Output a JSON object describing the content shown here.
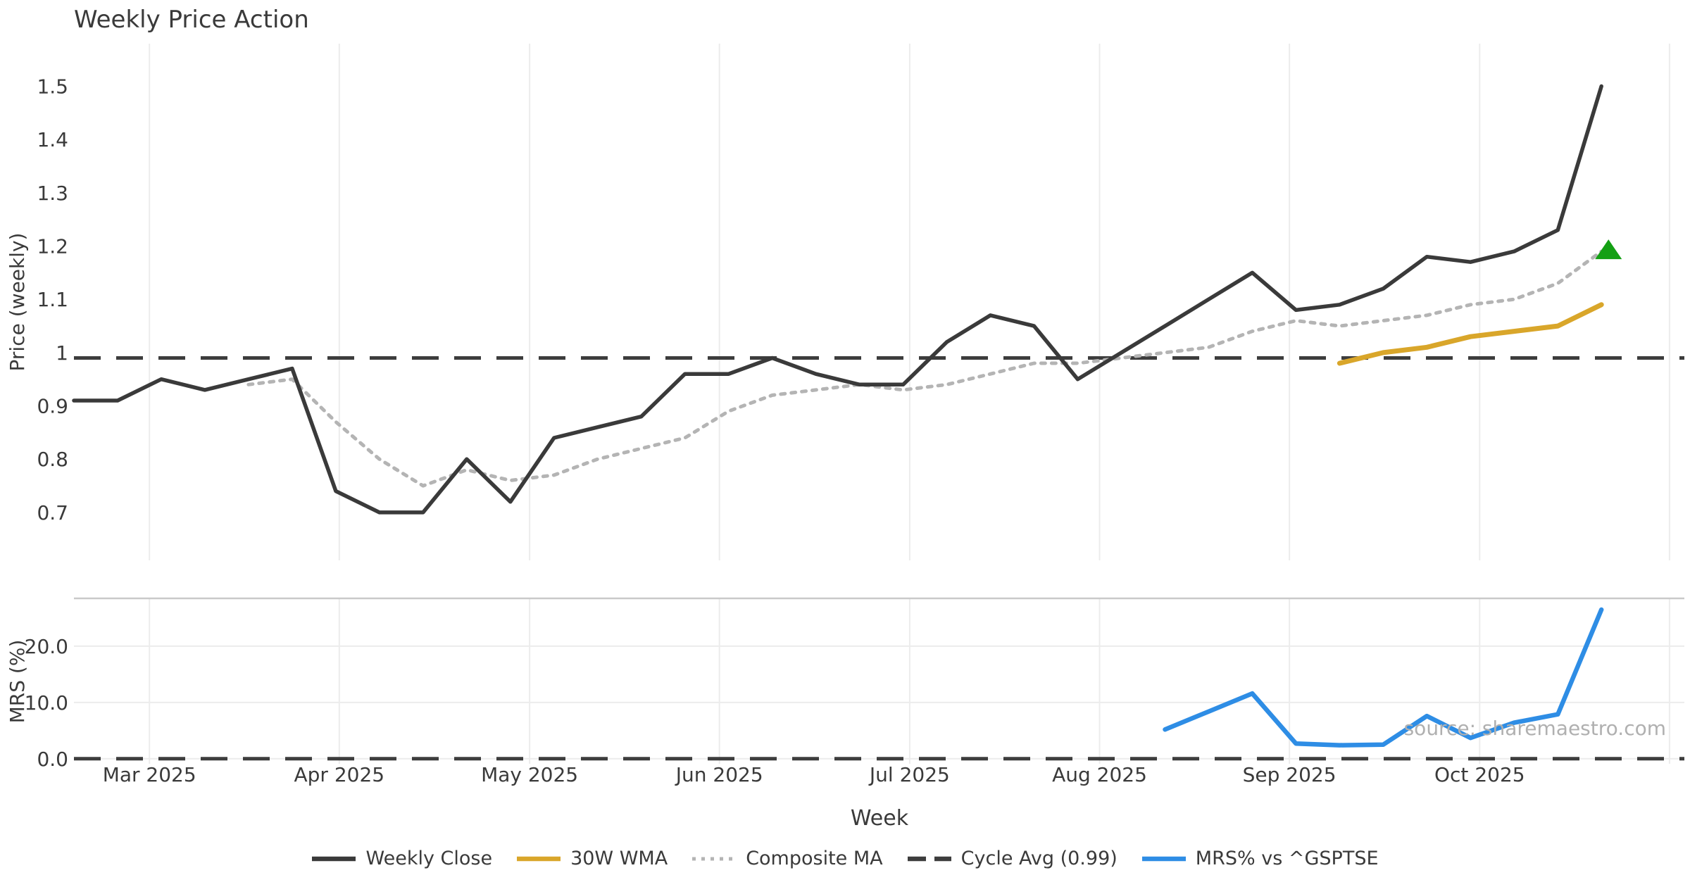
{
  "title": "Weekly Price Action",
  "source_note": "source: sharemaestro.com",
  "colors": {
    "weekly_close": "#3a3a3a",
    "wma_30w": "#d9a62a",
    "composite_ma": "#b4b4b4",
    "cycle_avg": "#3d3d3d",
    "mrs": "#2e8de5",
    "signal_marker": "#14a014",
    "gridline": "#ececec",
    "panel_spine": "#c9c9c9",
    "text": "#3a3a3a",
    "muted_text": "#b0b0b0"
  },
  "x_axis": {
    "label": "Week",
    "weeks_total": 36,
    "xlim_weeks": [
      0,
      36.9
    ],
    "month_ticks": [
      {
        "label": "Mar 2025",
        "week": 1.73
      },
      {
        "label": "Apr 2025",
        "week": 6.08
      },
      {
        "label": "May 2025",
        "week": 10.44
      },
      {
        "label": "Jun 2025",
        "week": 14.79
      },
      {
        "label": "Jul 2025",
        "week": 19.15
      },
      {
        "label": "Aug 2025",
        "week": 23.5
      },
      {
        "label": "Sep 2025",
        "week": 27.85
      },
      {
        "label": "Oct 2025",
        "week": 32.21
      }
    ],
    "extra_gridline_week": 36.56
  },
  "chart_data": [
    {
      "type": "line",
      "panel": "price",
      "ylabel": "Price (weekly)",
      "ylim": [
        0.61,
        1.58
      ],
      "yticks": [
        {
          "label": "1.5",
          "v": 1.5
        },
        {
          "label": "1.4",
          "v": 1.4
        },
        {
          "label": "1.3",
          "v": 1.3
        },
        {
          "label": "1.2",
          "v": 1.2
        },
        {
          "label": "1.1",
          "v": 1.1
        },
        {
          "label": "1",
          "v": 1.0
        },
        {
          "label": "0.9",
          "v": 0.9
        },
        {
          "label": "0.8",
          "v": 0.8
        },
        {
          "label": "0.7",
          "v": 0.7
        }
      ],
      "grid": "vertical-months",
      "series": [
        {
          "name": "Weekly Close",
          "style": "solid",
          "color_key": "weekly_close",
          "start_week": 0,
          "values": [
            0.91,
            0.91,
            0.95,
            0.93,
            0.95,
            0.97,
            0.74,
            0.7,
            0.7,
            0.8,
            0.72,
            0.84,
            0.86,
            0.88,
            0.96,
            0.96,
            0.99,
            0.96,
            0.94,
            0.94,
            1.02,
            1.07,
            1.05,
            0.95,
            1.0,
            1.05,
            1.1,
            1.15,
            1.08,
            1.09,
            1.12,
            1.18,
            1.17,
            1.19,
            1.23,
            1.5
          ]
        },
        {
          "name": "Composite MA",
          "style": "dotted",
          "color_key": "composite_ma",
          "start_week": 4,
          "values": [
            0.94,
            0.95,
            0.87,
            0.8,
            0.75,
            0.78,
            0.76,
            0.77,
            0.8,
            0.82,
            0.84,
            0.89,
            0.92,
            0.93,
            0.94,
            0.93,
            0.94,
            0.96,
            0.98,
            0.98,
            0.99,
            1.0,
            1.01,
            1.04,
            1.06,
            1.05,
            1.06,
            1.07,
            1.09,
            1.1,
            1.13,
            1.19
          ]
        },
        {
          "name": "30W WMA",
          "style": "solid",
          "color_key": "wma_30w",
          "start_week": 29,
          "values": [
            0.98,
            1.0,
            1.01,
            1.03,
            1.04,
            1.05,
            1.09
          ]
        }
      ],
      "reference_line": {
        "name": "Cycle Avg (0.99)",
        "value": 0.99,
        "style": "dashed",
        "color_key": "cycle_avg"
      },
      "marker": {
        "shape": "triangle-up",
        "week": 35,
        "value": 1.19,
        "color_key": "signal_marker"
      }
    },
    {
      "type": "line",
      "panel": "mrs",
      "ylabel": "MRS (%)",
      "ylim": [
        -0.9,
        28.5
      ],
      "yticks": [
        {
          "label": "0.0",
          "v": 0
        },
        {
          "label": "10.0",
          "v": 10
        },
        {
          "label": "20.0",
          "v": 20
        }
      ],
      "grid": "both",
      "series": [
        {
          "name": "MRS% vs ^GSPTSE",
          "style": "solid",
          "color_key": "mrs",
          "start_week": 25,
          "values": [
            5.2,
            8.4,
            11.6,
            2.7,
            2.4,
            2.5,
            7.6,
            3.7,
            6.4,
            7.9,
            26.5
          ]
        }
      ],
      "reference_line": {
        "name": "zero line",
        "value": 0.0,
        "style": "dashed",
        "color_key": "cycle_avg"
      }
    }
  ],
  "legend": [
    {
      "label": "Weekly Close",
      "style": "solid",
      "color_key": "weekly_close"
    },
    {
      "label": "30W WMA",
      "style": "solid",
      "color_key": "wma_30w"
    },
    {
      "label": "Composite MA",
      "style": "dotted",
      "color_key": "composite_ma"
    },
    {
      "label": "Cycle Avg (0.99)",
      "style": "dashed",
      "color_key": "cycle_avg"
    },
    {
      "label": "MRS% vs ^GSPTSE",
      "style": "solid",
      "color_key": "mrs"
    }
  ]
}
